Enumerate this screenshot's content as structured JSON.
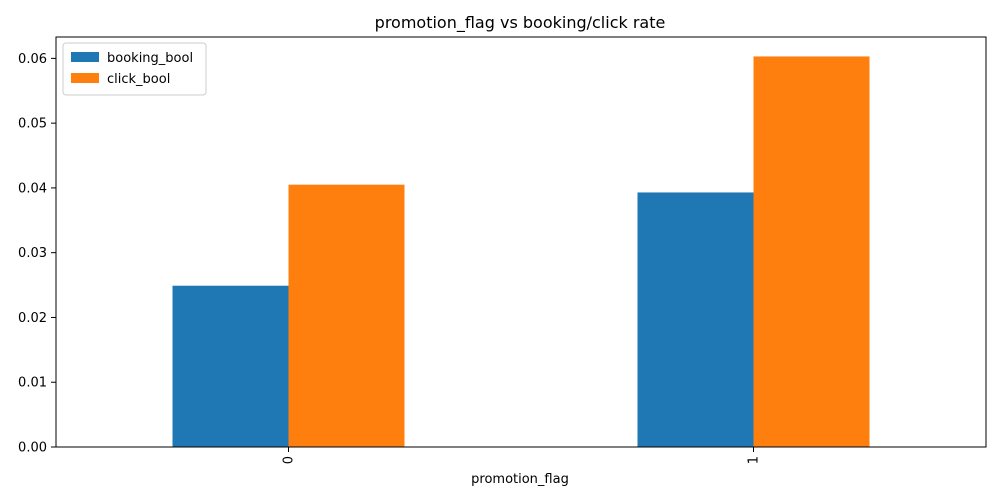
{
  "chart_data": {
    "type": "bar",
    "title": "promotion_flag vs booking/click rate",
    "xlabel": "promotion_flag",
    "ylabel": "",
    "categories": [
      "0",
      "1"
    ],
    "series": [
      {
        "name": "booking_bool",
        "color": "#1f77b4",
        "values": [
          0.0249,
          0.0393
        ]
      },
      {
        "name": "click_bool",
        "color": "#ff7f0e",
        "values": [
          0.0405,
          0.0603
        ]
      }
    ],
    "ylim": [
      0,
      0.0633
    ],
    "yticks": [
      "0.00",
      "0.01",
      "0.02",
      "0.03",
      "0.04",
      "0.05",
      "0.06"
    ],
    "ytick_values": [
      0,
      0.01,
      0.02,
      0.03,
      0.04,
      0.05,
      0.06
    ],
    "grid": false,
    "legend_position": "top-left"
  }
}
